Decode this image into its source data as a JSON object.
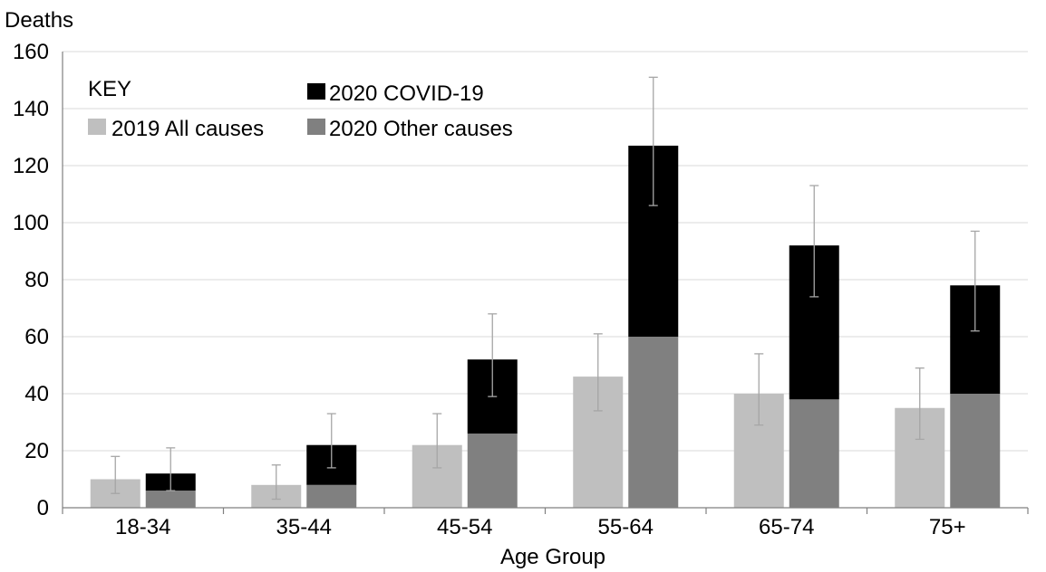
{
  "chart_data": {
    "type": "bar",
    "title": "",
    "ylabel": "Deaths",
    "xlabel": "Age Group",
    "ylim": [
      0,
      160
    ],
    "yticks": [
      0,
      20,
      40,
      60,
      80,
      100,
      120,
      140,
      160
    ],
    "categories": [
      "18-34",
      "35-44",
      "45-54",
      "55-64",
      "65-74",
      "75+"
    ],
    "grid": true,
    "legend_position": "top-left",
    "legend_title": "KEY",
    "series": [
      {
        "name": "2019 All causes",
        "color": "#bfbfbf",
        "stack": "2019",
        "values": [
          10,
          8,
          22,
          46,
          40,
          35
        ],
        "error_low": [
          5,
          3,
          14,
          34,
          29,
          24
        ],
        "error_high": [
          18,
          15,
          33,
          61,
          54,
          49
        ]
      },
      {
        "name": "2020 Other causes",
        "color": "#808080",
        "stack": "2020",
        "values": [
          6,
          8,
          26,
          60,
          38,
          40
        ]
      },
      {
        "name": "2020 COVID-19",
        "color": "#000000",
        "stack": "2020",
        "values": [
          6,
          14,
          26,
          67,
          54,
          38
        ],
        "total_error_low": [
          6,
          14,
          39,
          106,
          74,
          62
        ],
        "total_error_high": [
          21,
          33,
          68,
          151,
          113,
          97
        ]
      }
    ]
  }
}
